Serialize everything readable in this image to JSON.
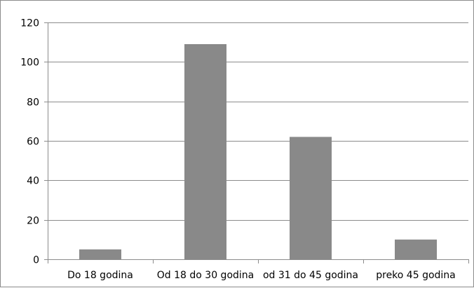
{
  "chart_data": {
    "type": "bar",
    "title": "",
    "xlabel": "",
    "ylabel": "",
    "categories": [
      "Do 18 godina",
      "Od 18 do 30 godina",
      "od 31 do 45 godina",
      "preko 45 godina"
    ],
    "values": [
      5,
      109,
      62,
      10
    ],
    "ylim": [
      0,
      120
    ],
    "yticks": [
      0,
      20,
      40,
      60,
      80,
      100,
      120
    ],
    "grid": true,
    "legend": "none",
    "bar_color": "#898989",
    "gridline_color": "#8c8c8c"
  }
}
